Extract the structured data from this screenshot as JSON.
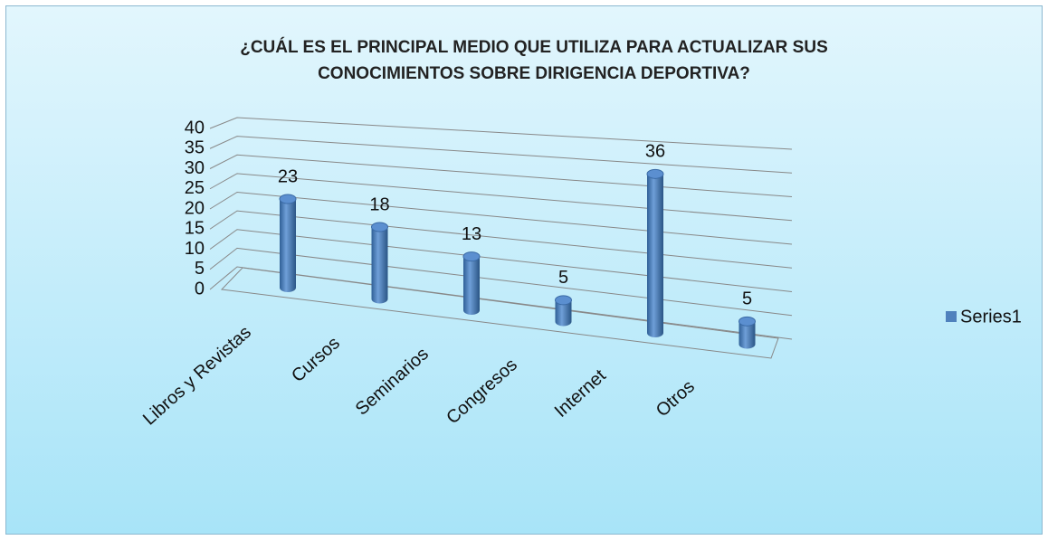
{
  "chart_data": {
    "type": "bar3d",
    "title": "¿CUÁL ES EL PRINCIPAL MEDIO QUE UTILIZA PARA ACTUALIZAR SUS CONOCIMIENTOS SOBRE DIRIGENCIA DEPORTIVA?",
    "categories": [
      "Libros y Revistas",
      "Cursos",
      "Seminarios",
      "Congresos",
      "Internet",
      "Otros"
    ],
    "series": [
      {
        "name": "Series1",
        "color": "#4f81bd",
        "values": [
          23,
          18,
          13,
          5,
          36,
          5
        ]
      }
    ],
    "ylim": [
      0,
      40
    ],
    "yticks": [
      0,
      5,
      10,
      15,
      20,
      25,
      30,
      35,
      40
    ],
    "grid": true,
    "legend": "right"
  }
}
